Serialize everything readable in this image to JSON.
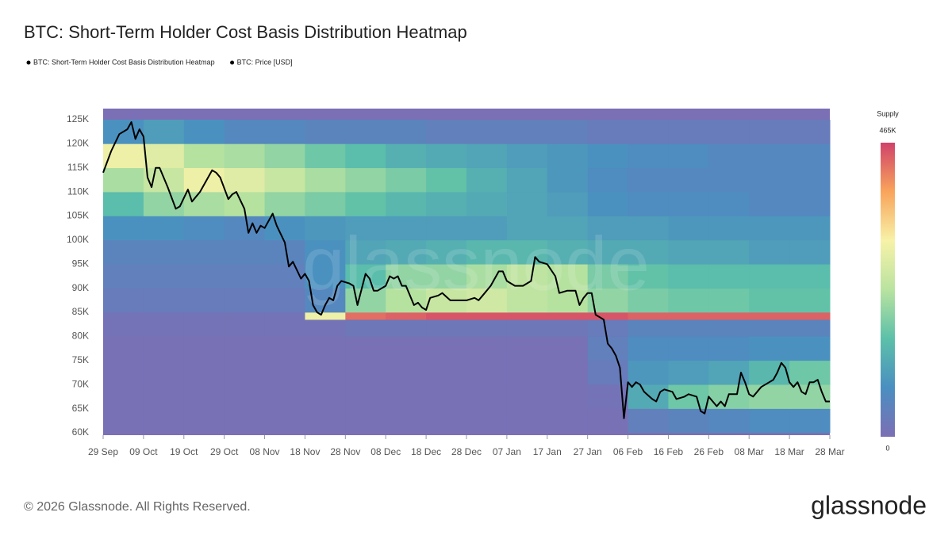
{
  "chart_data": {
    "type": "heatmap",
    "title": "BTC: Short-Term Holder Cost Basis Distribution Heatmap",
    "xlim": [
      "29 Sep",
      "28 Mar"
    ],
    "xticks": [
      "29 Sep",
      "09 Oct",
      "19 Oct",
      "29 Oct",
      "08 Nov",
      "18 Nov",
      "28 Nov",
      "08 Dec",
      "18 Dec",
      "28 Dec",
      "07 Jan",
      "17 Jan",
      "27 Jan",
      "06 Feb",
      "16 Feb",
      "26 Feb",
      "08 Mar",
      "18 Mar",
      "28 Mar"
    ],
    "ylim": [
      59500,
      127300
    ],
    "yticks": [
      {
        "value": 60000,
        "label": "60K"
      },
      {
        "value": 65000,
        "label": "65K"
      },
      {
        "value": 70000,
        "label": "70K"
      },
      {
        "value": 75000,
        "label": "75K"
      },
      {
        "value": 80000,
        "label": "80K"
      },
      {
        "value": 85000,
        "label": "85K"
      },
      {
        "value": 90000,
        "label": "90K"
      },
      {
        "value": 95000,
        "label": "95K"
      },
      {
        "value": 100000,
        "label": "100K"
      },
      {
        "value": 105000,
        "label": "105K"
      },
      {
        "value": 110000,
        "label": "110K"
      },
      {
        "value": 115000,
        "label": "115K"
      },
      {
        "value": 120000,
        "label": "120K"
      },
      {
        "value": 125000,
        "label": "125K"
      }
    ],
    "colorbar": {
      "title": "Supply",
      "colors": [
        "#7b6fb5",
        "#4a8fc1",
        "#5cc0a9",
        "#b9e3a0",
        "#f7f2a8",
        "#f9a45b",
        "#d0426a"
      ],
      "zlim": [
        0,
        465000
      ],
      "zticks": [
        0,
        {
          "value": 465000,
          "label": "465K"
        }
      ]
    },
    "series": [
      {
        "name": "BTC: Short-Term Holder Cost Basis Distribution Heatmap",
        "type": "heatmap",
        "color": "#000000",
        "x": [
          "29 Sep",
          "09 Oct",
          "19 Oct",
          "29 Oct",
          "08 Nov",
          "18 Nov",
          "28 Nov",
          "08 Dec",
          "18 Dec",
          "28 Dec",
          "07 Jan",
          "17 Jan",
          "27 Jan",
          "06 Feb",
          "16 Feb",
          "26 Feb",
          "08 Mar",
          "18 Mar"
        ],
        "y_bins": [
          60000,
          65000,
          70000,
          75000,
          80000,
          83500,
          85000,
          90000,
          95000,
          100000,
          105000,
          110000,
          115000,
          120000,
          125000
        ],
        "values": [
          [
            5000,
            5000,
            5000,
            5000,
            5000,
            5000,
            5000,
            5000,
            5000,
            5000,
            5000,
            5000,
            5000,
            40000,
            50000,
            60000,
            70000,
            70000
          ],
          [
            5000,
            5000,
            5000,
            5000,
            5000,
            5000,
            5000,
            5000,
            5000,
            5000,
            5000,
            5000,
            10000,
            120000,
            170000,
            190000,
            200000,
            200000
          ],
          [
            5000,
            5000,
            5000,
            5000,
            5000,
            5000,
            5000,
            5000,
            5000,
            5000,
            5000,
            5000,
            30000,
            90000,
            100000,
            110000,
            140000,
            170000
          ],
          [
            5000,
            5000,
            5000,
            5000,
            5000,
            5000,
            5000,
            5000,
            5000,
            5000,
            5000,
            5000,
            40000,
            70000,
            70000,
            70000,
            80000,
            80000
          ],
          [
            10000,
            10000,
            10000,
            10000,
            10000,
            10000,
            20000,
            20000,
            20000,
            20000,
            20000,
            20000,
            30000,
            50000,
            50000,
            50000,
            50000,
            50000
          ],
          [
            10000,
            10000,
            10000,
            10000,
            10000,
            300000,
            430000,
            440000,
            450000,
            450000,
            450000,
            450000,
            450000,
            440000,
            440000,
            440000,
            440000,
            440000
          ],
          [
            30000,
            30000,
            30000,
            30000,
            30000,
            60000,
            200000,
            230000,
            250000,
            260000,
            240000,
            230000,
            200000,
            180000,
            170000,
            170000,
            160000,
            160000
          ],
          [
            40000,
            40000,
            40000,
            40000,
            40000,
            80000,
            150000,
            200000,
            200000,
            220000,
            240000,
            230000,
            180000,
            160000,
            150000,
            150000,
            150000,
            150000
          ],
          [
            50000,
            50000,
            50000,
            50000,
            50000,
            80000,
            110000,
            120000,
            130000,
            140000,
            140000,
            130000,
            120000,
            120000,
            110000,
            110000,
            100000,
            100000
          ],
          [
            80000,
            80000,
            70000,
            60000,
            80000,
            90000,
            100000,
            100000,
            100000,
            100000,
            110000,
            110000,
            100000,
            100000,
            90000,
            90000,
            90000,
            90000
          ],
          [
            150000,
            200000,
            220000,
            230000,
            200000,
            180000,
            160000,
            140000,
            130000,
            120000,
            110000,
            100000,
            80000,
            70000,
            70000,
            70000,
            60000,
            60000
          ],
          [
            220000,
            250000,
            300000,
            280000,
            250000,
            220000,
            200000,
            180000,
            160000,
            130000,
            110000,
            90000,
            70000,
            60000,
            60000,
            60000,
            60000,
            60000
          ],
          [
            300000,
            280000,
            230000,
            220000,
            200000,
            170000,
            150000,
            130000,
            120000,
            110000,
            100000,
            90000,
            80000,
            70000,
            70000,
            60000,
            60000,
            60000
          ],
          [
            80000,
            100000,
            80000,
            60000,
            60000,
            50000,
            50000,
            50000,
            40000,
            40000,
            40000,
            40000,
            30000,
            30000,
            30000,
            30000,
            30000,
            30000
          ]
        ]
      },
      {
        "name": "BTC: Price [USD]",
        "type": "line",
        "color": "#000000",
        "x": [
          "29 Sep",
          "01 Oct",
          "03 Oct",
          "05 Oct",
          "06 Oct",
          "07 Oct",
          "08 Oct",
          "09 Oct",
          "10 Oct",
          "11 Oct",
          "12 Oct",
          "13 Oct",
          "15 Oct",
          "17 Oct",
          "18 Oct",
          "20 Oct",
          "21 Oct",
          "23 Oct",
          "24 Oct",
          "26 Oct",
          "27 Oct",
          "28 Oct",
          "30 Oct",
          "31 Oct",
          "01 Nov",
          "03 Nov",
          "04 Nov",
          "05 Nov",
          "06 Nov",
          "07 Nov",
          "08 Nov",
          "10 Nov",
          "11 Nov",
          "13 Nov",
          "14 Nov",
          "15 Nov",
          "17 Nov",
          "18 Nov",
          "19 Nov",
          "20 Nov",
          "21 Nov",
          "22 Nov",
          "23 Nov",
          "24 Nov",
          "25 Nov",
          "26 Nov",
          "27 Nov",
          "29 Nov",
          "30 Nov",
          "01 Dec",
          "03 Dec",
          "04 Dec",
          "05 Dec",
          "06 Dec",
          "08 Dec",
          "09 Dec",
          "10 Dec",
          "11 Dec",
          "12 Dec",
          "13 Dec",
          "15 Dec",
          "16 Dec",
          "17 Dec",
          "18 Dec",
          "19 Dec",
          "21 Dec",
          "22 Dec",
          "24 Dec",
          "26 Dec",
          "28 Dec",
          "30 Dec",
          "31 Dec",
          "01 Jan",
          "03 Jan",
          "05 Jan",
          "06 Jan",
          "07 Jan",
          "09 Jan",
          "11 Jan",
          "13 Jan",
          "14 Jan",
          "15 Jan",
          "17 Jan",
          "19 Jan",
          "20 Jan",
          "22 Jan",
          "24 Jan",
          "25 Jan",
          "26 Jan",
          "27 Jan",
          "28 Jan",
          "29 Jan",
          "31 Jan",
          "01 Feb",
          "02 Feb",
          "03 Feb",
          "04 Feb",
          "05 Feb",
          "06 Feb",
          "07 Feb",
          "08 Feb",
          "09 Feb",
          "10 Feb",
          "12 Feb",
          "13 Feb",
          "14 Feb",
          "15 Feb",
          "17 Feb",
          "18 Feb",
          "20 Feb",
          "21 Feb",
          "23 Feb",
          "24 Feb",
          "25 Feb",
          "26 Feb",
          "27 Feb",
          "28 Feb",
          "01 Mar",
          "02 Mar",
          "03 Mar",
          "05 Mar",
          "06 Mar",
          "07 Mar",
          "08 Mar",
          "09 Mar",
          "11 Mar",
          "12 Mar",
          "14 Mar",
          "15 Mar",
          "16 Mar",
          "17 Mar",
          "18 Mar",
          "19 Mar",
          "20 Mar",
          "21 Mar",
          "22 Mar",
          "23 Mar",
          "24 Mar",
          "25 Mar",
          "26 Mar",
          "27 Mar",
          "28 Mar"
        ],
        "values": [
          114000,
          118500,
          122000,
          123000,
          124500,
          121000,
          123000,
          121500,
          113000,
          111000,
          115000,
          115000,
          111000,
          106500,
          107000,
          110500,
          108000,
          110000,
          111500,
          114500,
          114000,
          113000,
          108500,
          109500,
          110000,
          106500,
          101500,
          103500,
          101500,
          103000,
          102500,
          105500,
          103000,
          99500,
          94500,
          95500,
          92000,
          93000,
          91500,
          86500,
          85000,
          84500,
          86500,
          88000,
          87500,
          90500,
          91500,
          91000,
          90500,
          86500,
          93000,
          92000,
          89500,
          89500,
          90500,
          92500,
          92000,
          92500,
          90500,
          90500,
          86500,
          87000,
          86000,
          85500,
          88000,
          88500,
          89000,
          87500,
          87500,
          87500,
          88000,
          87500,
          88500,
          90500,
          93500,
          93500,
          91500,
          90500,
          90500,
          91500,
          96500,
          95500,
          95000,
          92500,
          89000,
          89500,
          89500,
          86500,
          88000,
          89000,
          89000,
          84500,
          83500,
          78500,
          77500,
          76000,
          73500,
          63000,
          70500,
          69500,
          70500,
          70000,
          68500,
          67000,
          66500,
          68500,
          69000,
          68500,
          67000,
          67500,
          68000,
          67500,
          64500,
          64000,
          67500,
          66500,
          65500,
          66500,
          65500,
          68000,
          68000,
          72500,
          70500,
          68000,
          67500,
          69500,
          70000,
          71000,
          72500,
          74500,
          73500,
          70500,
          69500,
          70500,
          68500,
          68000,
          70500,
          70500,
          71000,
          68500,
          66500,
          66500
        ]
      }
    ]
  },
  "watermark": "glassnode",
  "footer": {
    "copyright": "© 2026 Glassnode. All Rights Reserved.",
    "logo": "glassnode"
  }
}
